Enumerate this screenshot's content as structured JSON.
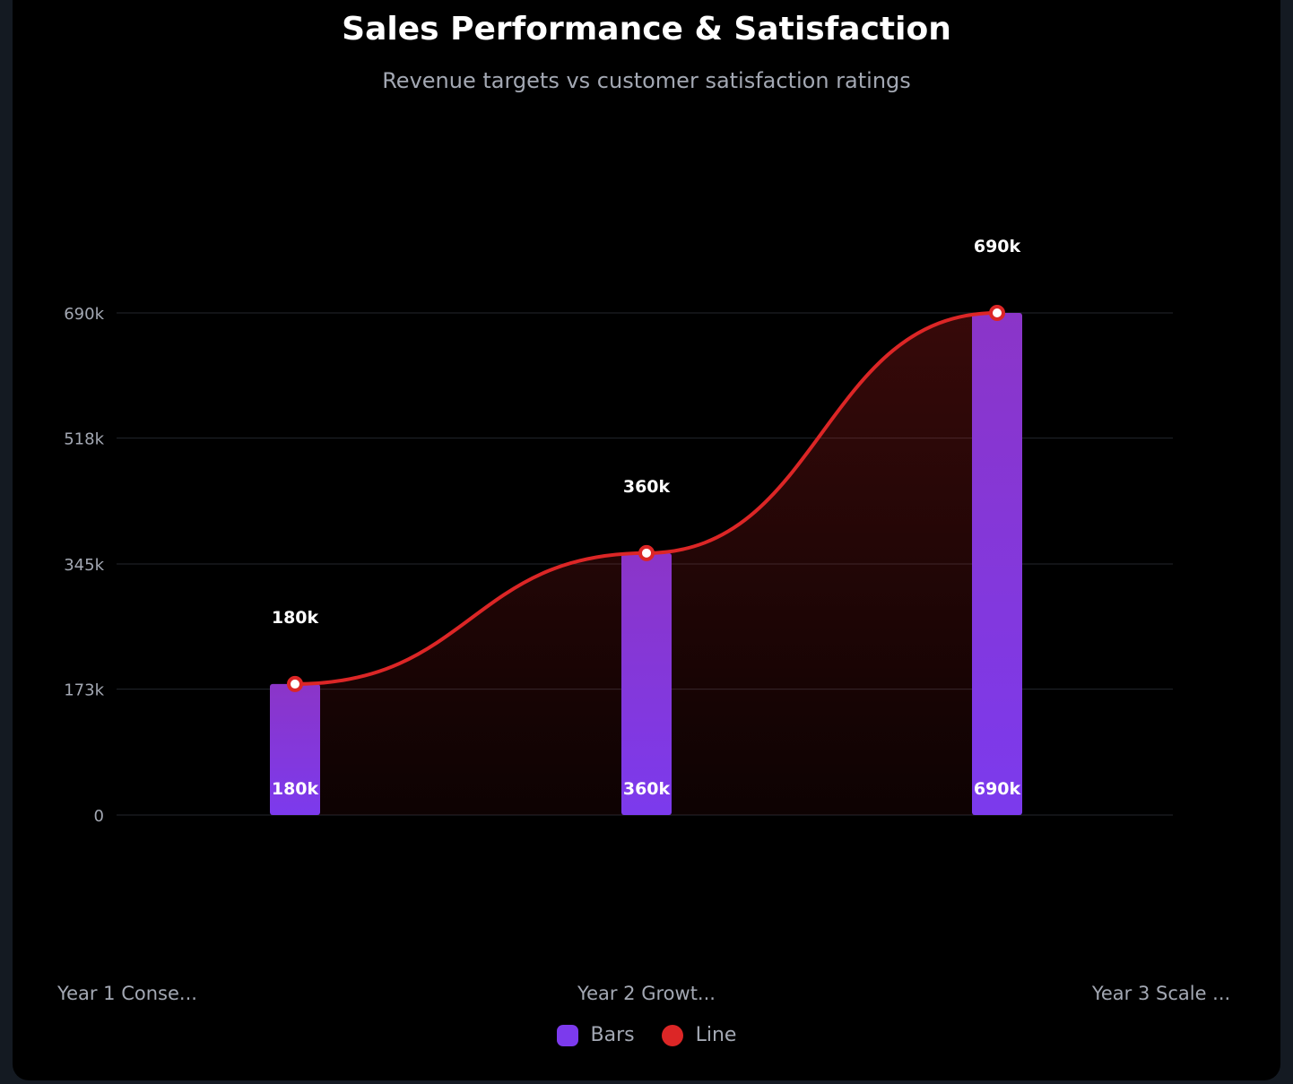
{
  "chart_data": {
    "type": "bar+line",
    "title": "Sales Performance & Satisfaction",
    "subtitle": "Revenue targets vs customer satisfaction ratings",
    "categories": [
      "Year 1 Conse...",
      "Year 2 Growt...",
      "Year 3 Scale ..."
    ],
    "series": [
      {
        "name": "Bars",
        "type": "bar",
        "values": [
          180000,
          360000,
          690000
        ],
        "labels": [
          "180k",
          "360k",
          "690k"
        ],
        "color": "#7c3aed"
      },
      {
        "name": "Line",
        "type": "line",
        "values": [
          180000,
          360000,
          690000
        ],
        "labels": [
          "180k",
          "360k",
          "690k"
        ],
        "color": "#dc2626"
      }
    ],
    "y_ticks": [
      0,
      173000,
      345000,
      518000,
      690000
    ],
    "y_tick_labels": [
      "0",
      "173k",
      "345k",
      "518k",
      "690k"
    ],
    "ylim": [
      0,
      690000
    ],
    "grid": true,
    "legend": "bottom-center"
  }
}
